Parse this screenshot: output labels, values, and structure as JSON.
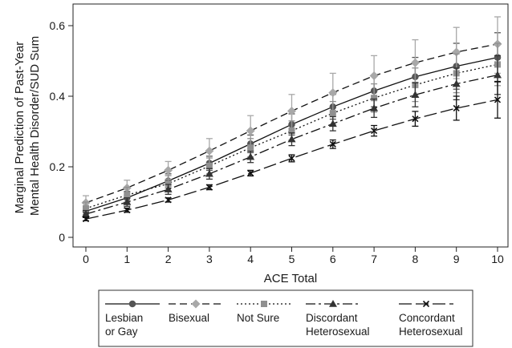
{
  "chart_data": {
    "type": "line",
    "title": "",
    "xlabel": "ACE Total",
    "ylabel_lines": [
      "Marginal Prediction of Past-Year",
      "Mental Health Disorder/SUD Sum"
    ],
    "x": [
      0,
      1,
      2,
      3,
      4,
      5,
      6,
      7,
      8,
      9,
      10
    ],
    "xlim": [
      0,
      10
    ],
    "ylim": [
      0,
      0.6
    ],
    "x_ticks": [
      "0",
      "1",
      "2",
      "3",
      "4",
      "5",
      "6",
      "7",
      "8",
      "9",
      "10"
    ],
    "y_ticks": [
      {
        "value": 0,
        "label": "0"
      },
      {
        "value": 0.2,
        "label": "0.2"
      },
      {
        "value": 0.4,
        "label": "0.4"
      },
      {
        "value": 0.6,
        "label": "0.6"
      }
    ],
    "grid": false,
    "legend_position": "bottom",
    "series": [
      {
        "name_lines": [
          "Lesbian",
          "or Gay"
        ],
        "color": "#555555",
        "line_color": "#111111",
        "dash": "",
        "marker": "circle",
        "values": [
          0.074,
          0.112,
          0.16,
          0.21,
          0.265,
          0.32,
          0.37,
          0.415,
          0.455,
          0.485,
          0.51
        ],
        "ci_low": [
          0.06,
          0.095,
          0.14,
          0.19,
          0.24,
          0.29,
          0.335,
          0.37,
          0.4,
          0.42,
          0.44
        ],
        "ci_high": [
          0.088,
          0.13,
          0.18,
          0.23,
          0.29,
          0.35,
          0.405,
          0.46,
          0.51,
          0.55,
          0.58
        ]
      },
      {
        "name_lines": [
          "Bisexual"
        ],
        "color": "#a8a8a8",
        "line_color": "#111111",
        "dash": "9,5",
        "marker": "diamond",
        "values": [
          0.098,
          0.14,
          0.19,
          0.245,
          0.302,
          0.358,
          0.41,
          0.458,
          0.495,
          0.525,
          0.548
        ],
        "ci_low": [
          0.08,
          0.12,
          0.165,
          0.21,
          0.26,
          0.31,
          0.355,
          0.4,
          0.43,
          0.45,
          0.465
        ],
        "ci_high": [
          0.118,
          0.162,
          0.215,
          0.28,
          0.345,
          0.405,
          0.465,
          0.515,
          0.56,
          0.595,
          0.625
        ]
      },
      {
        "name_lines": [
          "Not Sure"
        ],
        "color": "#909090",
        "line_color": "#111111",
        "dash": "2,3",
        "marker": "square",
        "values": [
          0.082,
          0.12,
          0.152,
          0.202,
          0.254,
          0.302,
          0.352,
          0.395,
          0.432,
          0.465,
          0.49
        ],
        "ci_low": [
          0.065,
          0.1,
          0.132,
          0.18,
          0.228,
          0.274,
          0.32,
          0.355,
          0.385,
          0.41,
          0.43
        ],
        "ci_high": [
          0.1,
          0.142,
          0.175,
          0.225,
          0.28,
          0.33,
          0.385,
          0.435,
          0.48,
          0.52,
          0.55
        ]
      },
      {
        "name_lines": [
          "Discordant",
          "Heterosexual"
        ],
        "color": "#333333",
        "line_color": "#111111",
        "dash": "12,4,3,4",
        "marker": "triangle",
        "values": [
          0.066,
          0.1,
          0.136,
          0.18,
          0.228,
          0.278,
          0.322,
          0.366,
          0.404,
          0.435,
          0.46
        ],
        "ci_low": [
          0.056,
          0.088,
          0.122,
          0.165,
          0.212,
          0.26,
          0.302,
          0.34,
          0.37,
          0.39,
          0.405
        ],
        "ci_high": [
          0.076,
          0.112,
          0.15,
          0.195,
          0.244,
          0.296,
          0.342,
          0.392,
          0.438,
          0.48,
          0.515
        ]
      },
      {
        "name_lines": [
          "Concordant",
          "Heterosexual"
        ],
        "color": "#111111",
        "line_color": "#111111",
        "dash": "16,5",
        "marker": "x",
        "values": [
          0.052,
          0.077,
          0.106,
          0.142,
          0.182,
          0.224,
          0.264,
          0.302,
          0.336,
          0.366,
          0.39
        ],
        "ci_low": [
          0.047,
          0.071,
          0.1,
          0.135,
          0.174,
          0.214,
          0.252,
          0.287,
          0.315,
          0.332,
          0.338
        ],
        "ci_high": [
          0.057,
          0.083,
          0.112,
          0.149,
          0.19,
          0.234,
          0.276,
          0.317,
          0.357,
          0.4,
          0.442
        ]
      }
    ]
  }
}
